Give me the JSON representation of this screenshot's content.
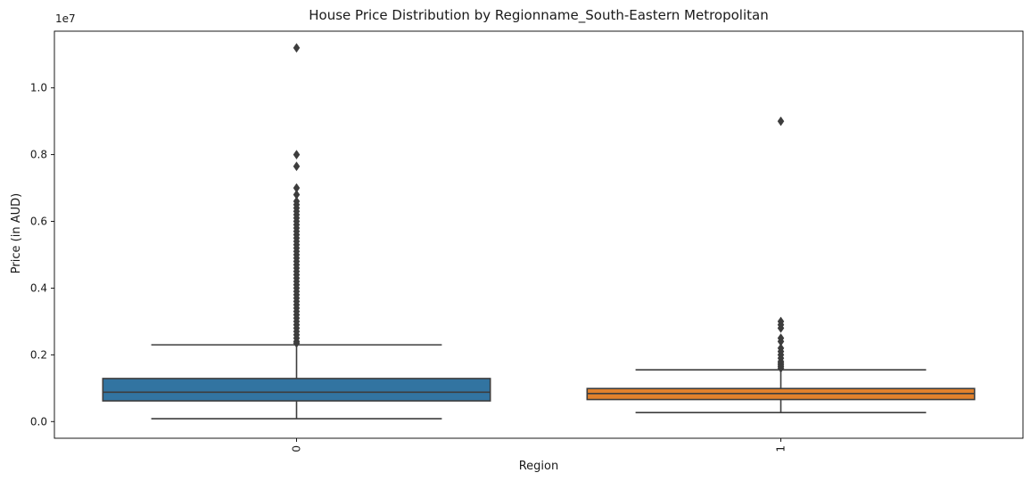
{
  "chart_data": {
    "type": "box",
    "title": "House Price Distribution by Regionname_South-Eastern Metropolitan",
    "xlabel": "Region",
    "ylabel": "Price (in AUD)",
    "y_scale_label": "1e7",
    "y_scale": 10000000,
    "ylim": [
      -0.05,
      1.17
    ],
    "y_ticks": [
      0.0,
      0.2,
      0.4,
      0.6,
      0.8,
      1.0
    ],
    "y_tick_labels": [
      "0.0",
      "0.2",
      "0.4",
      "0.6",
      "0.8",
      "1.0"
    ],
    "categories": [
      "0",
      "1"
    ],
    "x_tick_rotation": "vertical",
    "grid": false,
    "boxes": [
      {
        "category": "0",
        "color": "#3274a1",
        "whisker_low": 0.0085,
        "q1": 0.062,
        "median": 0.088,
        "q3": 0.129,
        "whisker_high": 0.23,
        "outliers": [
          1.12,
          0.8,
          0.765,
          0.7,
          0.68,
          0.66,
          0.65,
          0.64,
          0.63,
          0.62,
          0.61,
          0.6,
          0.59,
          0.58,
          0.57,
          0.56,
          0.55,
          0.54,
          0.53,
          0.52,
          0.51,
          0.5,
          0.49,
          0.48,
          0.47,
          0.46,
          0.45,
          0.44,
          0.43,
          0.42,
          0.41,
          0.4,
          0.39,
          0.38,
          0.37,
          0.36,
          0.35,
          0.34,
          0.33,
          0.32,
          0.31,
          0.3,
          0.29,
          0.28,
          0.27,
          0.26,
          0.25,
          0.24,
          0.235
        ]
      },
      {
        "category": "1",
        "color": "#e1812c",
        "whisker_low": 0.027,
        "q1": 0.066,
        "median": 0.084,
        "q3": 0.099,
        "whisker_high": 0.155,
        "outliers": [
          0.9,
          0.3,
          0.29,
          0.28,
          0.25,
          0.24,
          0.22,
          0.21,
          0.2,
          0.19,
          0.18,
          0.175,
          0.17,
          0.165,
          0.16
        ]
      }
    ]
  }
}
